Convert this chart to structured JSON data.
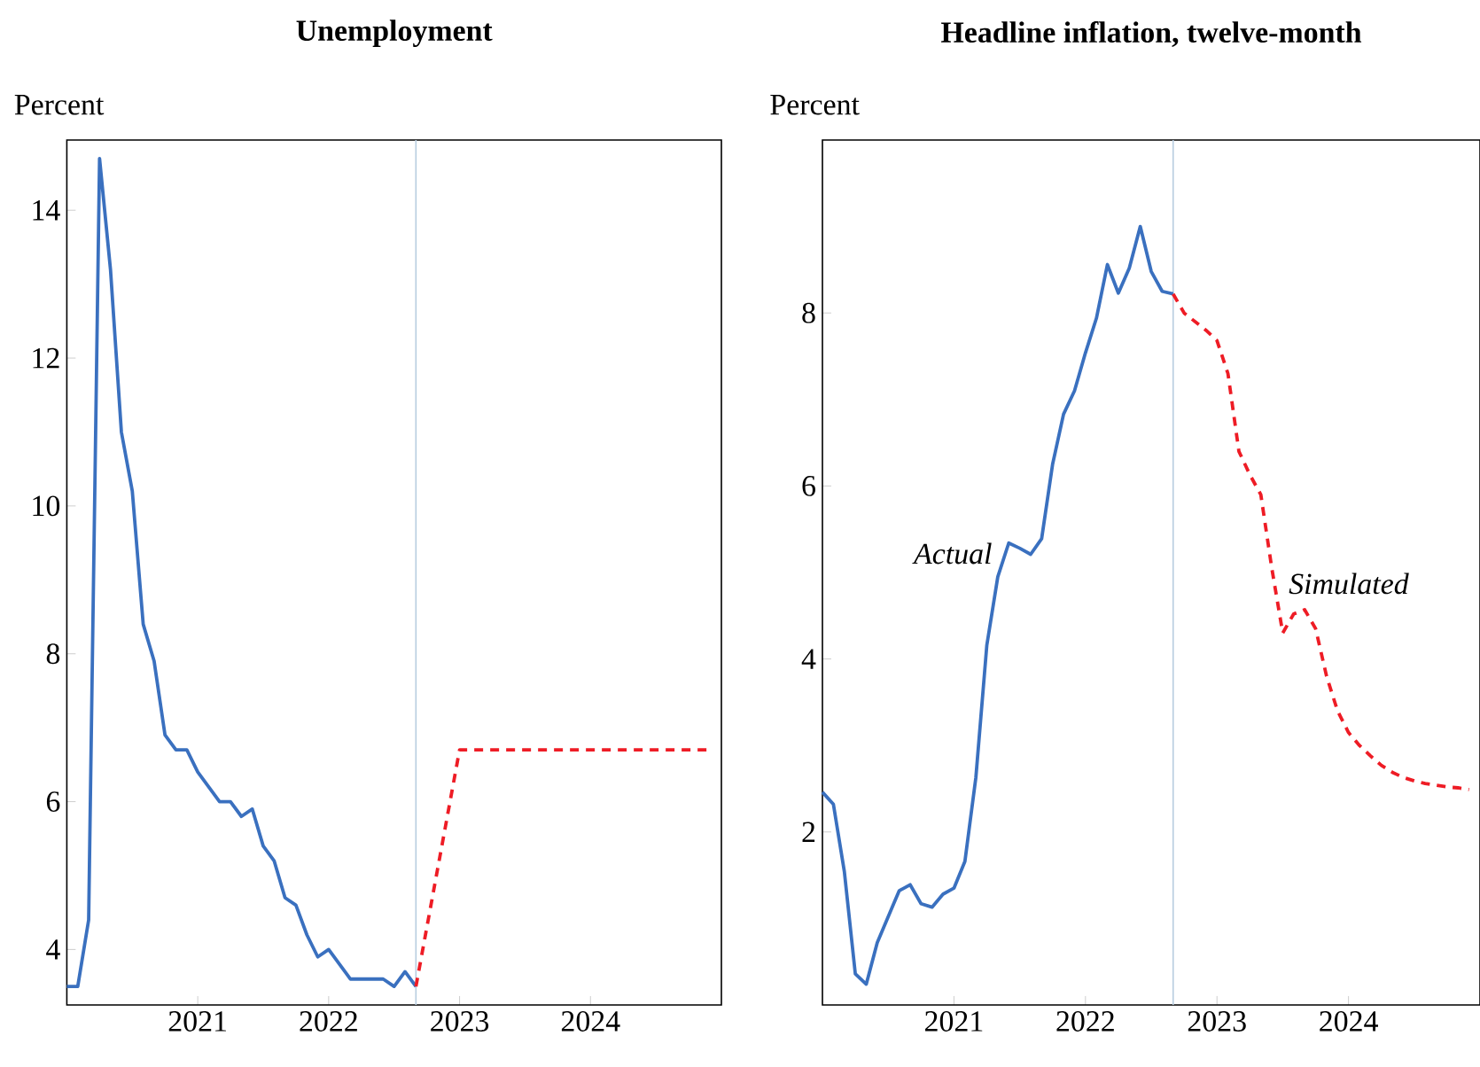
{
  "chart_data": [
    {
      "type": "line",
      "title": "Unemployment",
      "ylabel": "Percent",
      "xlim": [
        "2020-01",
        "2025-01"
      ],
      "ylim": [
        3.25,
        14.95
      ],
      "xticks": [
        "2021",
        "2022",
        "2023",
        "2024"
      ],
      "yticks": [
        4,
        6,
        8,
        10,
        12,
        14
      ],
      "ref_lines": [
        {
          "axis": "x",
          "value": "2022-09",
          "color": "#b7cde0"
        }
      ],
      "series": [
        {
          "color": "#3a70bf",
          "line_style": "solid",
          "x": [
            "2020-01",
            "2020-02",
            "2020-03",
            "2020-04",
            "2020-05",
            "2020-06",
            "2020-07",
            "2020-08",
            "2020-09",
            "2020-10",
            "2020-11",
            "2020-12",
            "2021-01",
            "2021-02",
            "2021-03",
            "2021-04",
            "2021-05",
            "2021-06",
            "2021-07",
            "2021-08",
            "2021-09",
            "2021-10",
            "2021-11",
            "2021-12",
            "2022-01",
            "2022-02",
            "2022-03",
            "2022-04",
            "2022-05",
            "2022-06",
            "2022-07",
            "2022-08",
            "2022-09"
          ],
          "values": [
            3.5,
            3.5,
            4.4,
            14.7,
            13.2,
            11.0,
            10.2,
            8.4,
            7.9,
            6.9,
            6.7,
            6.7,
            6.4,
            6.2,
            6.0,
            6.0,
            5.8,
            5.9,
            5.4,
            5.2,
            4.7,
            4.6,
            4.2,
            3.9,
            4.0,
            3.8,
            3.6,
            3.6,
            3.6,
            3.6,
            3.5,
            3.7,
            3.5
          ]
        },
        {
          "color": "#ee1c25",
          "line_style": "dashed",
          "x": [
            "2022-09",
            "2023-01",
            "2024-12"
          ],
          "values": [
            3.5,
            6.7,
            6.7
          ]
        }
      ]
    },
    {
      "type": "line",
      "title": "Headline inflation, twelve-month",
      "ylabel": "Percent",
      "xlim": [
        "2020-01",
        "2025-01"
      ],
      "ylim": [
        0,
        10
      ],
      "xticks": [
        "2021",
        "2022",
        "2023",
        "2024"
      ],
      "yticks": [
        2,
        4,
        6,
        8
      ],
      "ref_lines": [
        {
          "axis": "x",
          "value": "2022-09",
          "color": "#b7cde0"
        }
      ],
      "series": [
        {
          "name": "Actual",
          "color": "#3a70bf",
          "line_style": "solid",
          "x": [
            "2020-01",
            "2020-02",
            "2020-03",
            "2020-04",
            "2020-05",
            "2020-06",
            "2020-07",
            "2020-08",
            "2020-09",
            "2020-10",
            "2020-11",
            "2020-12",
            "2021-01",
            "2021-02",
            "2021-03",
            "2021-04",
            "2021-05",
            "2021-06",
            "2021-07",
            "2021-08",
            "2021-09",
            "2021-10",
            "2021-11",
            "2021-12",
            "2022-01",
            "2022-02",
            "2022-03",
            "2022-04",
            "2022-05",
            "2022-06",
            "2022-07",
            "2022-08",
            "2022-09"
          ],
          "values": [
            2.46,
            2.32,
            1.54,
            0.36,
            0.24,
            0.72,
            1.02,
            1.32,
            1.39,
            1.17,
            1.13,
            1.28,
            1.35,
            1.66,
            2.63,
            4.16,
            4.95,
            5.34,
            5.28,
            5.21,
            5.39,
            6.25,
            6.83,
            7.1,
            7.54,
            7.94,
            8.56,
            8.23,
            8.52,
            9.0,
            8.48,
            8.25,
            8.22
          ]
        },
        {
          "name": "Simulated",
          "color": "#ee1c25",
          "line_style": "dashed",
          "x": [
            "2022-09",
            "2022-10",
            "2022-11",
            "2022-12",
            "2023-01",
            "2023-02",
            "2023-03",
            "2023-04",
            "2023-05",
            "2023-06",
            "2023-07",
            "2023-08",
            "2023-09",
            "2023-10",
            "2023-11",
            "2023-12",
            "2024-01",
            "2024-02",
            "2024-03",
            "2024-04",
            "2024-05",
            "2024-06",
            "2024-07",
            "2024-08",
            "2024-09",
            "2024-10",
            "2024-11",
            "2024-12"
          ],
          "values": [
            8.22,
            8.0,
            7.9,
            7.8,
            7.68,
            7.3,
            6.4,
            6.13,
            5.9,
            5.05,
            4.3,
            4.52,
            4.57,
            4.35,
            3.8,
            3.4,
            3.15,
            3.0,
            2.88,
            2.77,
            2.69,
            2.63,
            2.59,
            2.56,
            2.54,
            2.52,
            2.51,
            2.49
          ]
        }
      ]
    }
  ]
}
